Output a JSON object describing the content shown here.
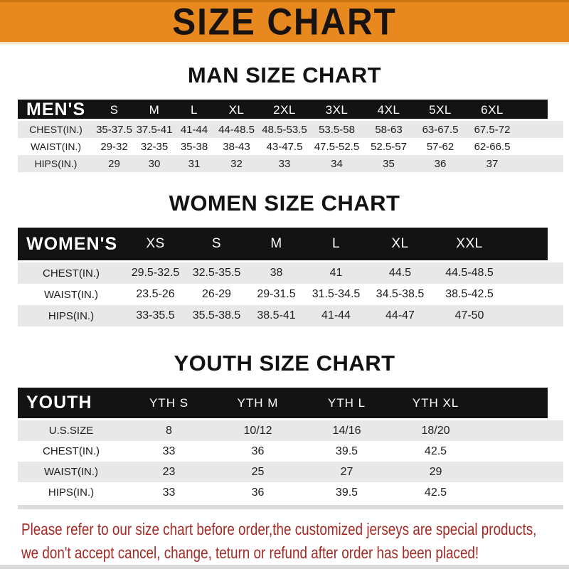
{
  "banner": {
    "title": "SIZE CHART"
  },
  "colors": {
    "banner_orange": "#E7891F",
    "header_black": "#131313",
    "stripe_gray": "#E8E8E8",
    "footer_red": "#A32B26"
  },
  "sections": [
    {
      "title": "MAN SIZE CHART",
      "header_label": "MEN'S",
      "columns": [
        "S",
        "M",
        "L",
        "XL",
        "2XL",
        "3XL",
        "4XL",
        "5XL",
        "6XL"
      ],
      "rows": [
        {
          "label": "CHEST(IN.)",
          "values": [
            "35-37.5",
            "37.5-41",
            "41-44",
            "44-48.5",
            "48.5-53.5",
            "53.5-58",
            "58-63",
            "63-67.5",
            "67.5-72"
          ]
        },
        {
          "label": "WAIST(IN.)",
          "values": [
            "29-32",
            "32-35",
            "35-38",
            "38-43",
            "43-47.5",
            "47.5-52.5",
            "52.5-57",
            "57-62",
            "62-66.5"
          ]
        },
        {
          "label": "HIPS(IN.)",
          "values": [
            "29",
            "30",
            "31",
            "32",
            "33",
            "34",
            "35",
            "36",
            "37"
          ]
        }
      ]
    },
    {
      "title": "WOMEN SIZE CHART",
      "header_label": "WOMEN'S",
      "columns": [
        "XS",
        "S",
        "M",
        "L",
        "XL",
        "XXL"
      ],
      "rows": [
        {
          "label": "CHEST(IN.)",
          "values": [
            "29.5-32.5",
            "32.5-35.5",
            "38",
            "41",
            "44.5",
            "44.5-48.5"
          ]
        },
        {
          "label": "WAIST(IN.)",
          "values": [
            "23.5-26",
            "26-29",
            "29-31.5",
            "31.5-34.5",
            "34.5-38.5",
            "38.5-42.5"
          ]
        },
        {
          "label": "HIPS(IN.)",
          "values": [
            "33-35.5",
            "35.5-38.5",
            "38.5-41",
            "41-44",
            "44-47",
            "47-50"
          ]
        }
      ]
    },
    {
      "title": "YOUTH SIZE CHART",
      "header_label": "YOUTH",
      "columns": [
        "YTH S",
        "YTH M",
        "YTH L",
        "YTH XL"
      ],
      "rows": [
        {
          "label": "U.S.SIZE",
          "values": [
            "8",
            "10/12",
            "14/16",
            "18/20"
          ]
        },
        {
          "label": "CHEST(IN.)",
          "values": [
            "33",
            "36",
            "39.5",
            "42.5"
          ]
        },
        {
          "label": "WAIST(IN.)",
          "values": [
            "23",
            "25",
            "27",
            "29"
          ]
        },
        {
          "label": "HIPS(IN.)",
          "values": [
            "33",
            "36",
            "39.5",
            "42.5"
          ]
        }
      ]
    }
  ],
  "footer": {
    "line1": "Please refer to our size chart before order,the customized jerseys are special products,",
    "line2": "we don't accept cancel, change, teturn or refund after order has been placed!"
  }
}
